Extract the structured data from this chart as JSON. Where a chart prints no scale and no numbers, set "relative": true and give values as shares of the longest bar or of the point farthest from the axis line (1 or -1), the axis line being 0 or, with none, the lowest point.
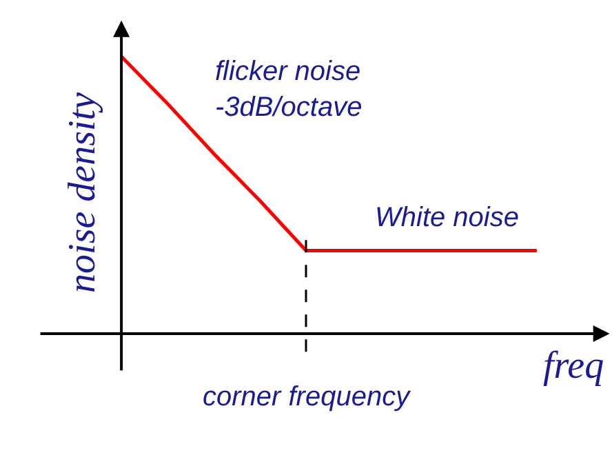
{
  "chart_data": {
    "type": "line",
    "relative": true,
    "xlabel": "freq",
    "ylabel": "noise density",
    "categories": [
      null,
      null,
      null,
      null,
      null,
      null,
      null,
      null,
      null,
      null
    ],
    "series": [
      {
        "color": "#ff0000",
        "values": [
          1,
          0.83,
          0.65,
          0.48,
          0.3,
          0.3,
          0.3,
          0.3,
          0.3,
          0.3
        ]
      }
    ],
    "annotations": [
      "flicker noise -3dB/octave",
      "White noise",
      "corner frequency"
    ],
    "marker": "none",
    "line_style": "solid"
  }
}
